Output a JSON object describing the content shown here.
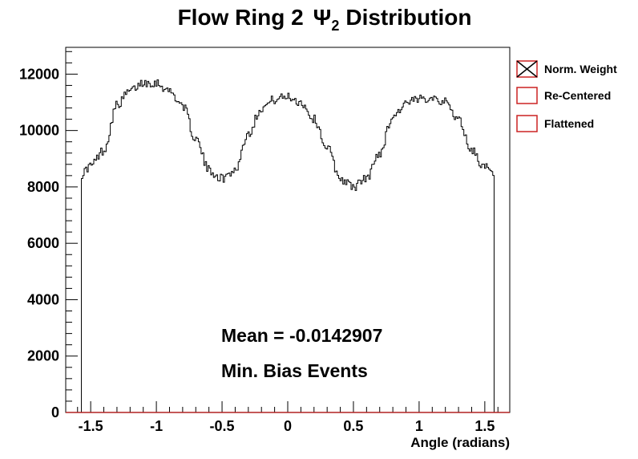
{
  "chart_data": {
    "type": "step-histogram",
    "title_main": "Flow Ring 2",
    "title_symbol": "Ψ",
    "title_subscript": "2",
    "title_rest": "Distribution",
    "xlabel": "Angle (radians)",
    "ylabel": "",
    "xlim": [
      -1.69,
      1.69
    ],
    "ylim": [
      0,
      12950
    ],
    "x_ticks": [
      -1.5,
      -1,
      -0.5,
      0,
      0.5,
      1,
      1.5
    ],
    "x_tick_labels": [
      "-1.5",
      "-1",
      "-0.5",
      "0",
      "0.5",
      "1",
      "1.5"
    ],
    "y_ticks": [
      0,
      2000,
      4000,
      6000,
      8000,
      10000,
      12000
    ],
    "y_tick_labels": [
      "0",
      "2000",
      "4000",
      "6000",
      "8000",
      "10000",
      "12000"
    ],
    "x_range": [
      -1.5708,
      1.5708
    ],
    "series": [
      {
        "color": "#000000",
        "points": [
          [
            -1.5708,
            8450
          ],
          [
            -1.5,
            8750
          ],
          [
            -1.4,
            9300
          ],
          [
            -1.3,
            10900
          ],
          [
            -1.2,
            11400
          ],
          [
            -1.1,
            11700
          ],
          [
            -1.0,
            11700
          ],
          [
            -0.9,
            11400
          ],
          [
            -0.8,
            10900
          ],
          [
            -0.7,
            9700
          ],
          [
            -0.6,
            8600
          ],
          [
            -0.5,
            8300
          ],
          [
            -0.4,
            8600
          ],
          [
            -0.3,
            9900
          ],
          [
            -0.2,
            10800
          ],
          [
            -0.1,
            11100
          ],
          [
            0.0,
            11200
          ],
          [
            0.1,
            11000
          ],
          [
            0.2,
            10400
          ],
          [
            0.3,
            9400
          ],
          [
            0.4,
            8300
          ],
          [
            0.5,
            8000
          ],
          [
            0.6,
            8300
          ],
          [
            0.7,
            9200
          ],
          [
            0.8,
            10500
          ],
          [
            0.9,
            10950
          ],
          [
            1.0,
            11100
          ],
          [
            1.1,
            11200
          ],
          [
            1.2,
            11000
          ],
          [
            1.3,
            10400
          ],
          [
            1.4,
            9300
          ],
          [
            1.5,
            8700
          ],
          [
            1.5708,
            8400
          ]
        ]
      }
    ],
    "annotations": [
      "Mean = -0.0142907",
      "Min. Bias Events"
    ],
    "legend": [
      {
        "label": "Norm. Weight",
        "marker": "crossed-box"
      },
      {
        "label": "Re-Centered",
        "marker": "box"
      },
      {
        "label": "Flattened",
        "marker": "box"
      }
    ],
    "legend_position": "right",
    "colors": {
      "frame": "#000000",
      "x_axis_line": "#b22222",
      "legend_box": "#cc2222",
      "line": "#000000"
    }
  }
}
